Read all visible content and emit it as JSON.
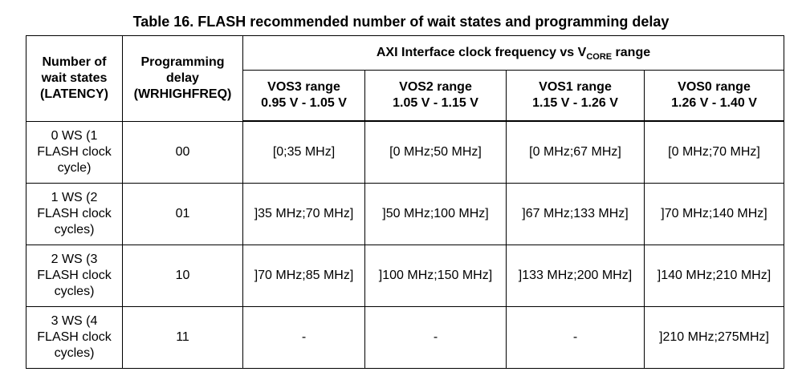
{
  "caption": "Table 16. FLASH recommended number of wait states and programming delay",
  "headers": {
    "wait_states": [
      "Number of",
      "wait states",
      "(LATENCY)"
    ],
    "prog_delay": [
      "Programming",
      "delay",
      "(WRHIGHFREQ)"
    ],
    "axi_main": "AXI Interface clock frequency vs V",
    "axi_sub": "CORE",
    "axi_tail": " range",
    "vos": [
      {
        "name": "VOS3 range",
        "range": "0.95 V - 1.05 V"
      },
      {
        "name": "VOS2 range",
        "range": "1.05 V - 1.15 V"
      },
      {
        "name": "VOS1 range",
        "range": "1.15 V - 1.26 V"
      },
      {
        "name": "VOS0 range",
        "range": "1.26 V - 1.40 V"
      }
    ]
  },
  "rows": [
    {
      "ws": [
        "0 WS (1",
        "FLASH clock",
        "cycle)"
      ],
      "delay": "00",
      "freqs": [
        "[0;35 MHz]",
        "[0 MHz;50 MHz]",
        "[0 MHz;67 MHz]",
        "[0 MHz;70 MHz]"
      ]
    },
    {
      "ws": [
        "1 WS (2",
        "FLASH clock",
        "cycles)"
      ],
      "delay": "01",
      "freqs": [
        "]35 MHz;70 MHz]",
        "]50 MHz;100 MHz]",
        "]67 MHz;133 MHz]",
        "]70 MHz;140 MHz]"
      ]
    },
    {
      "ws": [
        "2 WS (3",
        "FLASH clock",
        "cycles)"
      ],
      "delay": "10",
      "freqs": [
        "]70 MHz;85 MHz]",
        "]100 MHz;150 MHz]",
        "]133 MHz;200 MHz]",
        "]140 MHz;210 MHz]"
      ]
    },
    {
      "ws": [
        "3 WS (4",
        "FLASH clock",
        "cycles)"
      ],
      "delay": "11",
      "freqs": [
        "-",
        "-",
        "-",
        "]210 MHz;275MHz]"
      ]
    }
  ]
}
